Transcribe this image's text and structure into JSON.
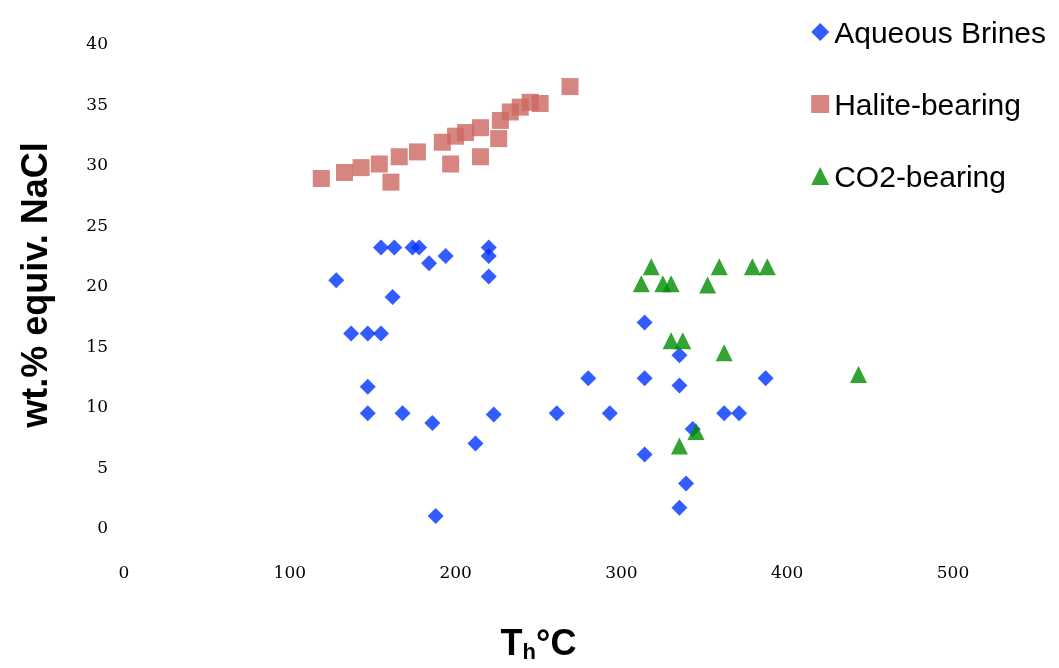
{
  "chart_data": {
    "type": "scatter",
    "xlabel": "T$_{h}$°C",
    "ylabel": "wt.% equiv. NaCl",
    "xlim": [
      0,
      500
    ],
    "xticks": [
      0,
      100,
      200,
      300,
      400,
      500
    ],
    "ylim": [
      0,
      40
    ],
    "yticks": [
      0,
      5,
      10,
      15,
      20,
      25,
      30,
      35,
      40
    ],
    "grid": false,
    "legend": "top right",
    "series": [
      {
        "name": "Aqueous Brines",
        "color": "#0033ff",
        "marker": "diamond",
        "x": [
          128,
          137,
          147,
          155,
          155,
          163,
          174,
          178,
          184,
          194,
          162,
          147,
          147,
          168,
          186,
          212,
          188,
          220,
          220,
          220,
          223,
          261,
          293,
          280,
          314,
          314,
          314,
          335,
          335,
          335,
          339,
          343,
          362,
          371,
          387
        ],
        "values": [
          20.4,
          16.0,
          16.0,
          16.0,
          23.1,
          23.1,
          23.1,
          23.1,
          21.8,
          22.4,
          19.0,
          11.6,
          9.4,
          9.4,
          8.6,
          6.9,
          0.9,
          23.1,
          22.4,
          20.7,
          9.3,
          9.4,
          9.4,
          12.3,
          16.9,
          12.3,
          6.0,
          14.2,
          11.7,
          1.6,
          3.6,
          8.1,
          9.4,
          9.4,
          12.3
        ]
      },
      {
        "name": "Halite-bearing",
        "color": "#cd6660",
        "marker": "square",
        "x": [
          119,
          133,
          143,
          154,
          161,
          166,
          177,
          192,
          197,
          200,
          206,
          215,
          215,
          226,
          227,
          233,
          239,
          245,
          251,
          269
        ],
        "values": [
          28.8,
          29.3,
          29.7,
          30.0,
          28.5,
          30.6,
          31.0,
          31.8,
          30.0,
          32.3,
          32.6,
          30.6,
          33.0,
          32.1,
          33.6,
          34.3,
          34.7,
          35.1,
          35.0,
          36.4
        ]
      },
      {
        "name": "CO2-bearing",
        "color": "#008c00",
        "marker": "triangle",
        "x": [
          312,
          318,
          325,
          330,
          330,
          337,
          352,
          359,
          362,
          379,
          388,
          443,
          335,
          345
        ],
        "values": [
          20.1,
          21.5,
          20.1,
          20.1,
          15.4,
          15.4,
          20.0,
          21.5,
          14.4,
          21.5,
          21.5,
          12.6,
          6.7,
          7.9
        ]
      }
    ]
  }
}
